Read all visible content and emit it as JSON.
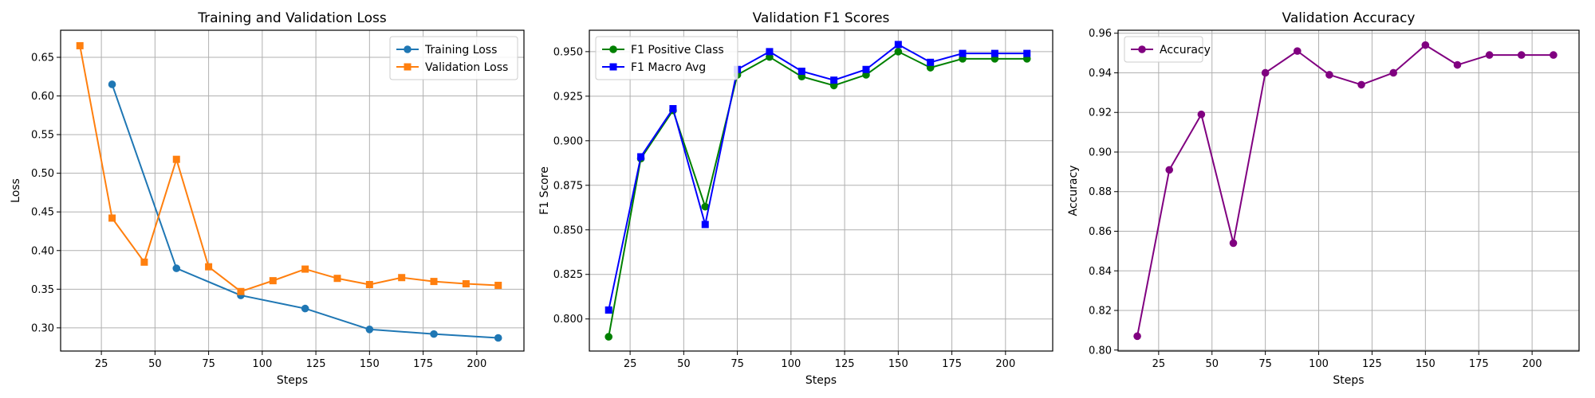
{
  "chart_data": [
    {
      "type": "line",
      "title": "Training and Validation Loss",
      "xlabel": "Steps",
      "ylabel": "Loss",
      "xlim": [
        6,
        222
      ],
      "ylim": [
        0.27,
        0.685
      ],
      "xticks": [
        25,
        50,
        75,
        100,
        125,
        150,
        175,
        200
      ],
      "yticks": [
        0.3,
        0.35,
        0.4,
        0.45,
        0.5,
        0.55,
        0.6,
        0.65
      ],
      "ytick_labels": [
        "0.30",
        "0.35",
        "0.40",
        "0.45",
        "0.50",
        "0.55",
        "0.60",
        "0.65"
      ],
      "grid": true,
      "legend": "top-right",
      "series": [
        {
          "name": "Training Loss",
          "color": "#1f77b4",
          "marker": "circle",
          "x": [
            30,
            60,
            90,
            120,
            150,
            180,
            210
          ],
          "y": [
            0.615,
            0.377,
            0.342,
            0.325,
            0.298,
            0.292,
            0.287
          ]
        },
        {
          "name": "Validation Loss",
          "color": "#ff7f0e",
          "marker": "square",
          "x": [
            15,
            30,
            45,
            60,
            75,
            90,
            105,
            120,
            135,
            150,
            165,
            180,
            195,
            210
          ],
          "y": [
            0.665,
            0.442,
            0.385,
            0.518,
            0.379,
            0.347,
            0.361,
            0.376,
            0.364,
            0.356,
            0.365,
            0.36,
            0.357,
            0.355
          ]
        }
      ]
    },
    {
      "type": "line",
      "title": "Validation F1 Scores",
      "xlabel": "Steps",
      "ylabel": "F1 Score",
      "xlim": [
        6,
        222
      ],
      "ylim": [
        0.782,
        0.962
      ],
      "xticks": [
        25,
        50,
        75,
        100,
        125,
        150,
        175,
        200
      ],
      "yticks": [
        0.8,
        0.825,
        0.85,
        0.875,
        0.9,
        0.925,
        0.95
      ],
      "ytick_labels": [
        "0.800",
        "0.825",
        "0.850",
        "0.875",
        "0.900",
        "0.925",
        "0.950"
      ],
      "grid": true,
      "legend": "top-left",
      "series": [
        {
          "name": "F1 Positive Class",
          "color": "#008000",
          "marker": "circle",
          "x": [
            15,
            30,
            45,
            60,
            75,
            90,
            105,
            120,
            135,
            150,
            165,
            180,
            195,
            210
          ],
          "y": [
            0.79,
            0.89,
            0.917,
            0.863,
            0.937,
            0.947,
            0.936,
            0.931,
            0.937,
            0.95,
            0.941,
            0.946,
            0.946,
            0.946
          ]
        },
        {
          "name": "F1 Macro Avg",
          "color": "#0000ff",
          "marker": "square",
          "x": [
            15,
            30,
            45,
            60,
            75,
            90,
            105,
            120,
            135,
            150,
            165,
            180,
            195,
            210
          ],
          "y": [
            0.805,
            0.891,
            0.918,
            0.853,
            0.94,
            0.95,
            0.939,
            0.934,
            0.94,
            0.954,
            0.944,
            0.949,
            0.949,
            0.949
          ]
        }
      ]
    },
    {
      "type": "line",
      "title": "Validation Accuracy",
      "xlabel": "Steps",
      "ylabel": "Accuracy",
      "xlim": [
        6,
        222
      ],
      "ylim": [
        0.7995,
        0.9615
      ],
      "xticks": [
        25,
        50,
        75,
        100,
        125,
        150,
        175,
        200
      ],
      "yticks": [
        0.8,
        0.82,
        0.84,
        0.86,
        0.88,
        0.9,
        0.92,
        0.94,
        0.96
      ],
      "ytick_labels": [
        "0.80",
        "0.82",
        "0.84",
        "0.86",
        "0.88",
        "0.90",
        "0.92",
        "0.94",
        "0.96"
      ],
      "grid": true,
      "legend": "top-left",
      "series": [
        {
          "name": "Accuracy",
          "color": "#800080",
          "marker": "circle",
          "x": [
            15,
            30,
            45,
            60,
            75,
            90,
            105,
            120,
            135,
            150,
            165,
            180,
            195,
            210
          ],
          "y": [
            0.807,
            0.891,
            0.919,
            0.854,
            0.94,
            0.951,
            0.939,
            0.934,
            0.94,
            0.954,
            0.944,
            0.949,
            0.949,
            0.949
          ]
        }
      ]
    }
  ]
}
